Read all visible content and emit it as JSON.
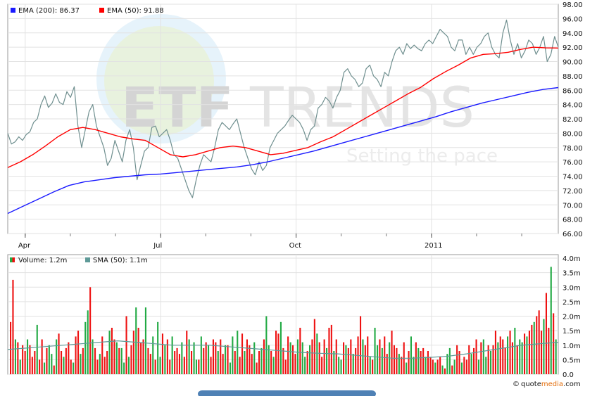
{
  "watermark": {
    "brand_bold": "ETF",
    "brand_light": "TRENDS",
    "tagline": "Setting the pace"
  },
  "credit": {
    "prefix": "quote",
    "suffix": "media",
    "tld": ".com",
    "symbol": "©"
  },
  "colors": {
    "ema200": "#1a1aff",
    "ema50": "#ff0000",
    "price": "#6f8f8f",
    "vol_up": "#22aa44",
    "vol_down": "#ee1111",
    "sma": "#5f9a98",
    "wm_circle": "#cfe9f6"
  },
  "chart_data": [
    {
      "type": "line",
      "legend": [
        {
          "label": "EMA (200): 86.37",
          "color": "#1a1aff"
        },
        {
          "label": "EMA (50): 91.88",
          "color": "#ff0000"
        }
      ],
      "xlim": [
        0,
        126
      ],
      "x_ticks": [
        {
          "x": 4,
          "label": "Apr"
        },
        {
          "x": 35,
          "label": "Jul"
        },
        {
          "x": 66,
          "label": "Oct"
        },
        {
          "x": 97,
          "label": "2011"
        }
      ],
      "ylim": [
        66,
        98
      ],
      "y_ticks": [
        66,
        68,
        70,
        72,
        74,
        76,
        78,
        80,
        82,
        84,
        86,
        88,
        90,
        92,
        94,
        96,
        98
      ],
      "y_tick_labels": [
        "66.00",
        "68.00",
        "70.00",
        "72.00",
        "74.00",
        "76.00",
        "78.00",
        "80.00",
        "82.00",
        "84.00",
        "86.00",
        "88.00",
        "90.00",
        "92.00",
        "94.00",
        "96.00",
        "98.00"
      ],
      "grid": true,
      "series": [
        {
          "name": "Price",
          "values": [
            80.0,
            78.5,
            78.8,
            79.5,
            79.0,
            79.8,
            80.2,
            81.5,
            82.0,
            84.0,
            85.2,
            83.6,
            84.2,
            85.5,
            84.3,
            84.0,
            85.8,
            85.0,
            86.5,
            81.0,
            78.0,
            80.5,
            83.0,
            84.0,
            81.0,
            79.5,
            78.0,
            75.5,
            76.5,
            79.0,
            77.5,
            76.0,
            79.0,
            80.5,
            78.0,
            73.5,
            75.5,
            77.5,
            78.0,
            80.8,
            81.0,
            79.5,
            80.0,
            80.5,
            79.0,
            77.0,
            76.5,
            75.0,
            73.5,
            72.0,
            71.0,
            73.5,
            75.5,
            77.0,
            76.5,
            76.0,
            78.0,
            80.5,
            81.5,
            81.0,
            80.5,
            81.3,
            82.0,
            80.0,
            78.0,
            76.5,
            75.0,
            74.2,
            76.0,
            74.8,
            75.5,
            78.0,
            79.0,
            80.0,
            80.5,
            81.0,
            81.8,
            82.5,
            82.0,
            81.5,
            80.5,
            79.0,
            80.5,
            81.0,
            83.5,
            84.0,
            85.0,
            84.5,
            83.5,
            85.0,
            86.0,
            88.5,
            89.0,
            88.0,
            87.5,
            86.5,
            87.0,
            89.0,
            89.5,
            88.0,
            87.5,
            86.5,
            88.5,
            88.0,
            90.0,
            91.5,
            92.0,
            91.0,
            92.5,
            91.8,
            92.3,
            91.8,
            91.5,
            92.5,
            93.0,
            92.5,
            93.5,
            94.5,
            94.0,
            93.5,
            92.0,
            91.5,
            93.0,
            93.0,
            91.0,
            92.0,
            91.0,
            92.0,
            92.5,
            93.5,
            94.0,
            92.0,
            91.0,
            90.5,
            94.0,
            95.8,
            93.0,
            91.0,
            92.5,
            90.5,
            91.5,
            93.0,
            92.5,
            91.0,
            92.0,
            93.5,
            90.0,
            91.0,
            93.5,
            92.0
          ]
        },
        {
          "name": "EMA (50)",
          "values": [
            75.2,
            76.0,
            77.0,
            78.2,
            79.5,
            80.5,
            80.8,
            80.5,
            80.0,
            79.5,
            79.2,
            79.0,
            78.0,
            77.0,
            76.7,
            77.0,
            77.5,
            78.0,
            78.2,
            78.0,
            77.5,
            77.0,
            77.2,
            77.6,
            78.0,
            78.8,
            79.5,
            80.5,
            81.5,
            82.5,
            83.5,
            84.5,
            85.5,
            86.4,
            87.6,
            88.6,
            89.5,
            90.5,
            91.0,
            91.1,
            91.3,
            91.7,
            92.0,
            91.9,
            91.88
          ]
        },
        {
          "name": "EMA (200)",
          "values": [
            68.8,
            69.8,
            70.8,
            71.8,
            72.7,
            73.2,
            73.5,
            73.8,
            74.0,
            74.2,
            74.3,
            74.5,
            74.7,
            74.9,
            75.1,
            75.3,
            75.6,
            76.0,
            76.5,
            77.0,
            77.5,
            78.1,
            78.7,
            79.3,
            79.9,
            80.5,
            81.1,
            81.7,
            82.3,
            83.0,
            83.6,
            84.2,
            84.7,
            85.2,
            85.7,
            86.1,
            86.37
          ]
        }
      ]
    },
    {
      "type": "bar",
      "legend": [
        {
          "label": "Volume: 1.2m",
          "color": "#ee1111"
        },
        {
          "label": "SMA (50): 1.1m",
          "color": "#5f9a98"
        }
      ],
      "ylim": [
        0,
        4.0
      ],
      "y_ticks": [
        0,
        0.5,
        1.0,
        1.5,
        2.0,
        2.5,
        3.0,
        3.5,
        4.0
      ],
      "y_tick_labels": [
        "0.0",
        "0.5m",
        "1.0m",
        "1.5m",
        "2.0m",
        "2.5m",
        "3.0m",
        "3.5m",
        "4.0m"
      ],
      "grid": true,
      "series": [
        {
          "name": "Volume",
          "values": [
            1.8,
            3.25,
            1.2,
            1.1,
            0.5,
            1.0,
            0.8,
            1.2,
            1.0,
            0.6,
            0.8,
            1.7,
            0.5,
            1.2,
            0.4,
            0.9,
            1.0,
            0.7,
            0.3,
            1.2,
            1.4,
            0.8,
            0.6,
            0.9,
            1.1,
            0.5,
            0.4,
            1.3,
            1.5,
            0.7,
            0.9,
            1.8,
            2.2,
            3.0,
            1.2,
            0.9,
            0.5,
            0.7,
            1.3,
            0.6,
            0.8,
            1.5,
            1.6,
            1.2,
            1.1,
            0.9,
            0.9,
            0.4,
            2.0,
            0.6,
            1.0,
            1.5,
            2.3,
            1.6,
            1.1,
            1.2,
            2.3,
            0.9,
            0.7,
            1.3,
            0.5,
            1.8,
            0.6,
            1.4,
            1.0,
            1.2,
            0.5,
            1.3,
            0.8,
            0.9,
            0.7,
            1.1,
            0.6,
            1.5,
            1.2,
            0.8,
            1.1,
            0.5,
            0.5,
            1.3,
            0.9,
            1.1,
            1.0,
            0.6,
            1.2,
            1.1,
            0.8,
            1.2,
            0.7,
            1.0,
            1.0,
            0.4,
            1.3,
            0.8,
            1.5,
            0.6,
            1.4,
            0.8,
            1.2,
            1.0,
            0.7,
            1.1,
            0.4,
            0.8,
            0.9,
            1.2,
            2.0,
            1.0,
            0.8,
            0.6,
            1.5,
            1.4,
            1.8,
            0.9,
            0.5,
            1.3,
            1.1,
            1.0,
            0.7,
            1.2,
            1.6,
            1.1,
            0.6,
            0.8,
            1.0,
            1.2,
            1.9,
            1.4,
            1.1,
            0.6,
            1.2,
            0.9,
            1.6,
            1.7,
            0.8,
            1.2,
            0.6,
            0.5,
            1.1,
            1.0,
            0.9,
            1.2,
            0.7,
            0.9,
            1.3,
            2.0,
            1.2,
            1.0,
            1.3,
            0.6,
            0.5,
            1.6,
            1.0,
            1.2,
            0.9,
            1.3,
            0.7,
            1.1,
            1.5,
            1.0,
            0.9,
            0.7,
            0.6,
            1.1,
            0.4,
            0.8,
            1.3,
            0.6,
            1.1,
            0.9,
            0.8,
            0.9,
            0.6,
            0.8,
            0.6,
            0.5,
            0.4,
            0.5,
            0.6,
            0.3,
            0.2,
            0.7,
            0.9,
            0.3,
            0.5,
            1.0,
            0.8,
            0.4,
            0.6,
            0.5,
            1.0,
            0.7,
            0.9,
            1.2,
            0.5,
            1.1,
            1.2,
            0.6,
            1.0,
            0.8,
            1.0,
            1.5,
            1.1,
            1.3,
            1.2,
            0.9,
            1.3,
            1.5,
            1.1,
            1.6,
            1.0,
            1.2,
            1.1,
            1.4,
            1.3,
            1.5,
            1.7,
            1.8,
            2.0,
            2.2,
            1.5,
            1.9,
            2.8,
            1.6,
            3.7,
            2.1,
            1.2
          ]
        },
        {
          "name": "SMA (50)",
          "values": [
            0.85,
            0.9,
            0.95,
            1.0,
            1.05,
            1.1,
            1.15,
            1.1,
            1.05,
            1.0,
            1.0,
            1.0,
            0.95,
            0.9,
            0.85,
            0.8,
            0.75,
            0.72,
            0.7,
            0.65,
            0.6,
            0.55,
            0.55,
            0.58,
            0.62,
            0.7,
            0.8,
            0.9,
            1.0,
            1.05,
            1.1
          ]
        }
      ]
    }
  ]
}
